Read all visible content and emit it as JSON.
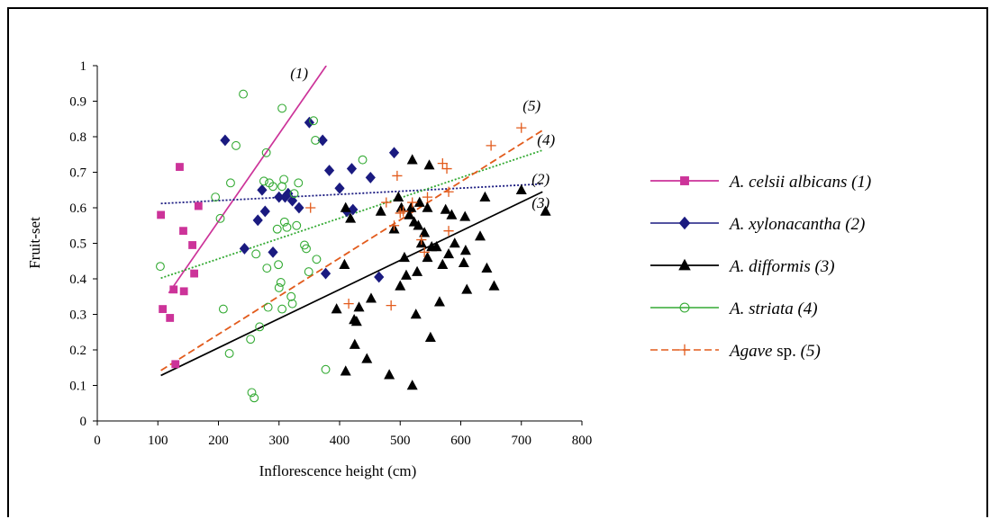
{
  "chart_data": {
    "type": "scatter",
    "xlabel": "Inflorescence height (cm)",
    "ylabel": "Fruit-set",
    "xlim": [
      0,
      800
    ],
    "ylim": [
      0,
      1
    ],
    "x_ticks": [
      "0",
      "100",
      "200",
      "300",
      "400",
      "500",
      "600",
      "700",
      "800"
    ],
    "y_ticks": [
      "0",
      "0.1",
      "0.2",
      "0.3",
      "0.4",
      "0.5",
      "0.6",
      "0.7",
      "0.8",
      "0.9",
      "1"
    ],
    "grid": false,
    "legend_position": "right",
    "series": [
      {
        "name": "A. celsii albicans (1)",
        "name_parts": [
          {
            "text": "A. celsii albicans (1)",
            "italic": true
          }
        ],
        "color": "#cc3399",
        "marker": "square",
        "line_style": "solid",
        "points": [
          [
            105,
            0.58
          ],
          [
            108,
            0.315
          ],
          [
            120,
            0.29
          ],
          [
            126,
            0.37
          ],
          [
            129,
            0.16
          ],
          [
            136,
            0.715
          ],
          [
            142,
            0.535
          ],
          [
            143,
            0.365
          ],
          [
            157,
            0.495
          ],
          [
            160,
            0.415
          ],
          [
            167,
            0.605
          ]
        ],
        "trend": [
          [
            118,
            0.36
          ],
          [
            378,
            1.0
          ]
        ],
        "annotation": "(1)"
      },
      {
        "name": "A. xylonacantha (2)",
        "name_parts": [
          {
            "text": "A. xylonacantha (2)",
            "italic": true
          }
        ],
        "color": "#1a1a80",
        "marker": "diamond",
        "line_style": "dotted",
        "points": [
          [
            211,
            0.79
          ],
          [
            243,
            0.485
          ],
          [
            265,
            0.565
          ],
          [
            272,
            0.65
          ],
          [
            277,
            0.59
          ],
          [
            290,
            0.475
          ],
          [
            300,
            0.63
          ],
          [
            310,
            0.63
          ],
          [
            315,
            0.64
          ],
          [
            322,
            0.62
          ],
          [
            333,
            0.6
          ],
          [
            350,
            0.84
          ],
          [
            372,
            0.79
          ],
          [
            377,
            0.415
          ],
          [
            383,
            0.705
          ],
          [
            400,
            0.655
          ],
          [
            412,
            0.59
          ],
          [
            420,
            0.71
          ],
          [
            422,
            0.595
          ],
          [
            451,
            0.685
          ],
          [
            465,
            0.405
          ],
          [
            490,
            0.755
          ]
        ],
        "trend": [
          [
            105,
            0.612
          ],
          [
            735,
            0.667
          ]
        ],
        "annotation": "(2)"
      },
      {
        "name": "A. difformis (3)",
        "name_parts": [
          {
            "text": "A. difformis (3)",
            "italic": true
          }
        ],
        "color": "#000000",
        "marker": "triangle",
        "line_style": "solid",
        "points": [
          [
            395,
            0.315
          ],
          [
            408,
            0.44
          ],
          [
            410,
            0.14
          ],
          [
            410,
            0.6
          ],
          [
            418,
            0.57
          ],
          [
            424,
            0.285
          ],
          [
            425,
            0.215
          ],
          [
            428,
            0.28
          ],
          [
            432,
            0.32
          ],
          [
            445,
            0.175
          ],
          [
            452,
            0.345
          ],
          [
            468,
            0.59
          ],
          [
            482,
            0.13
          ],
          [
            490,
            0.54
          ],
          [
            497,
            0.63
          ],
          [
            500,
            0.38
          ],
          [
            502,
            0.6
          ],
          [
            507,
            0.46
          ],
          [
            510,
            0.41
          ],
          [
            515,
            0.58
          ],
          [
            518,
            0.6
          ],
          [
            520,
            0.1
          ],
          [
            520,
            0.735
          ],
          [
            523,
            0.56
          ],
          [
            526,
            0.3
          ],
          [
            528,
            0.42
          ],
          [
            530,
            0.55
          ],
          [
            532,
            0.615
          ],
          [
            535,
            0.5
          ],
          [
            540,
            0.53
          ],
          [
            545,
            0.46
          ],
          [
            545,
            0.6
          ],
          [
            548,
            0.72
          ],
          [
            550,
            0.235
          ],
          [
            552,
            0.49
          ],
          [
            560,
            0.49
          ],
          [
            565,
            0.335
          ],
          [
            570,
            0.44
          ],
          [
            575,
            0.595
          ],
          [
            580,
            0.47
          ],
          [
            585,
            0.58
          ],
          [
            590,
            0.5
          ],
          [
            605,
            0.445
          ],
          [
            607,
            0.575
          ],
          [
            608,
            0.48
          ],
          [
            610,
            0.37
          ],
          [
            632,
            0.52
          ],
          [
            640,
            0.63
          ],
          [
            643,
            0.43
          ],
          [
            655,
            0.38
          ],
          [
            700,
            0.65
          ],
          [
            740,
            0.59
          ]
        ],
        "trend": [
          [
            105,
            0.128
          ],
          [
            735,
            0.645
          ]
        ],
        "annotation": "(3)"
      },
      {
        "name": "A. striata (4)",
        "name_parts": [
          {
            "text": "A. striata (4)",
            "italic": true
          }
        ],
        "color": "#33aa33",
        "marker": "circle-open",
        "line_style": "dotted",
        "points": [
          [
            104,
            0.435
          ],
          [
            195,
            0.63
          ],
          [
            203,
            0.57
          ],
          [
            208,
            0.315
          ],
          [
            218,
            0.19
          ],
          [
            220,
            0.67
          ],
          [
            229,
            0.775
          ],
          [
            241,
            0.92
          ],
          [
            253,
            0.23
          ],
          [
            255,
            0.08
          ],
          [
            259,
            0.065
          ],
          [
            262,
            0.47
          ],
          [
            268,
            0.265
          ],
          [
            275,
            0.675
          ],
          [
            279,
            0.755
          ],
          [
            280,
            0.43
          ],
          [
            282,
            0.32
          ],
          [
            284,
            0.67
          ],
          [
            290,
            0.66
          ],
          [
            297,
            0.54
          ],
          [
            299,
            0.44
          ],
          [
            300,
            0.375
          ],
          [
            303,
            0.39
          ],
          [
            305,
            0.88
          ],
          [
            305,
            0.315
          ],
          [
            305,
            0.66
          ],
          [
            308,
            0.68
          ],
          [
            309,
            0.56
          ],
          [
            313,
            0.545
          ],
          [
            320,
            0.35
          ],
          [
            322,
            0.33
          ],
          [
            325,
            0.64
          ],
          [
            329,
            0.55
          ],
          [
            332,
            0.67
          ],
          [
            342,
            0.495
          ],
          [
            345,
            0.485
          ],
          [
            349,
            0.42
          ],
          [
            357,
            0.845
          ],
          [
            360,
            0.79
          ],
          [
            362,
            0.455
          ],
          [
            377,
            0.145
          ],
          [
            438,
            0.735
          ]
        ],
        "trend": [
          [
            105,
            0.402
          ],
          [
            735,
            0.762
          ]
        ],
        "annotation": "(4)"
      },
      {
        "name": "Agave sp. (5)",
        "name_parts": [
          {
            "text": "Agave",
            "italic": true
          },
          {
            "text": " sp. ",
            "italic": false
          },
          {
            "text": "(5)",
            "italic": true
          }
        ],
        "color": "#e25b1c",
        "marker": "plus",
        "line_style": "dashed",
        "points": [
          [
            352,
            0.6
          ],
          [
            415,
            0.33
          ],
          [
            477,
            0.615
          ],
          [
            485,
            0.325
          ],
          [
            490,
            0.55
          ],
          [
            495,
            0.69
          ],
          [
            500,
            0.585
          ],
          [
            505,
            0.59
          ],
          [
            520,
            0.615
          ],
          [
            535,
            0.51
          ],
          [
            540,
            0.475
          ],
          [
            545,
            0.63
          ],
          [
            570,
            0.725
          ],
          [
            577,
            0.71
          ],
          [
            580,
            0.535
          ],
          [
            580,
            0.645
          ],
          [
            650,
            0.775
          ],
          [
            700,
            0.825
          ]
        ],
        "trend": [
          [
            105,
            0.142
          ],
          [
            735,
            0.818
          ]
        ],
        "annotation": "(5)"
      }
    ]
  }
}
